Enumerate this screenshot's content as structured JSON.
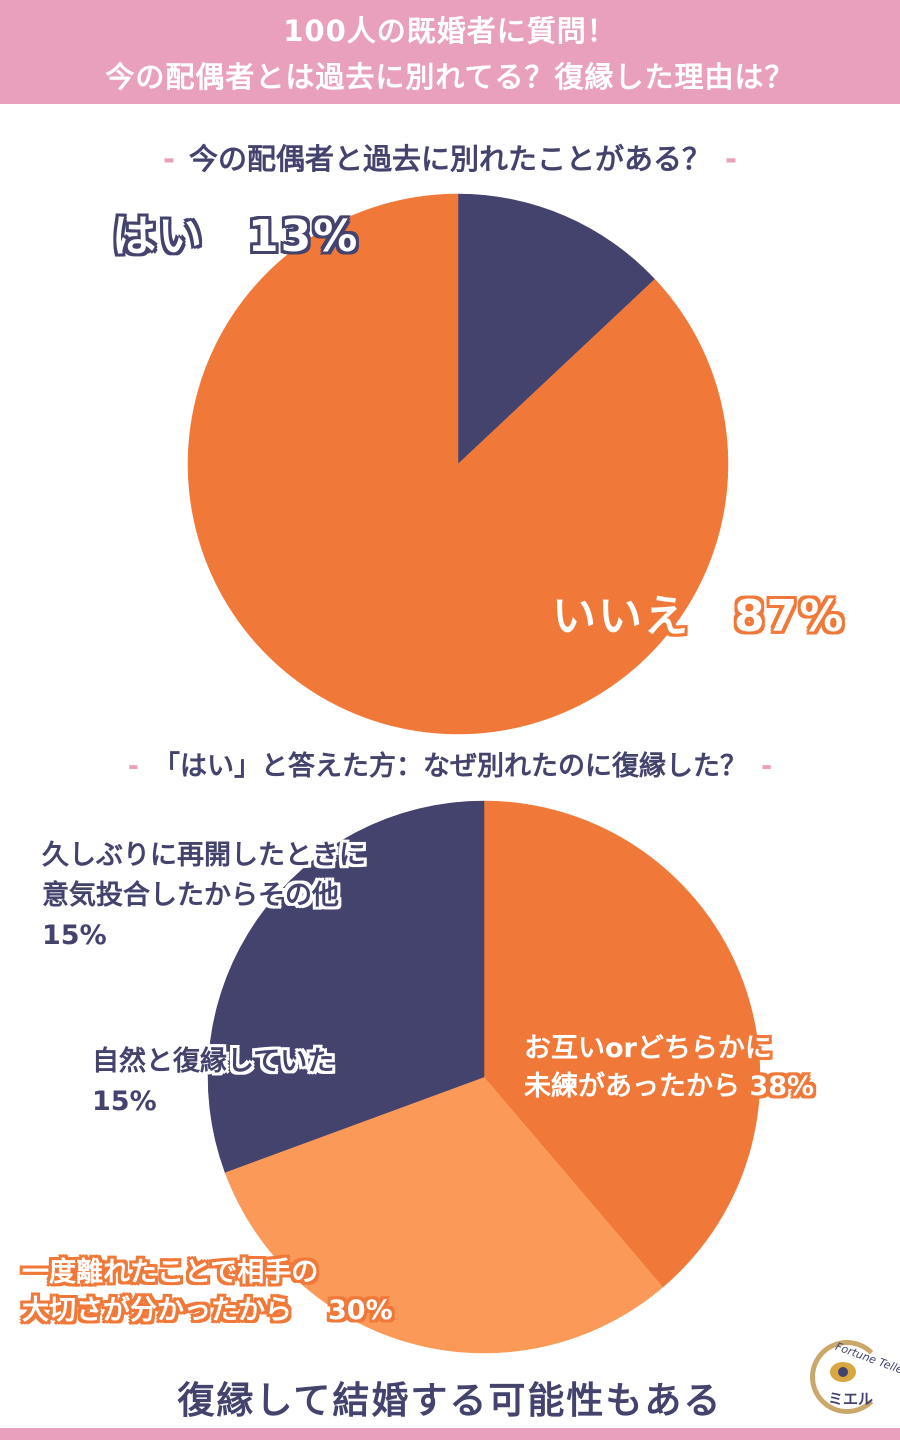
{
  "header": {
    "line1": "100人の既婚者に質問！",
    "line2": "今の配偶者とは過去に別れてる？復縁した理由は？"
  },
  "colors": {
    "navy": "#43436e",
    "orange": "#f07838",
    "light_orange": "#fb9a58",
    "pink": "#e9a0bd"
  },
  "chart_data": [
    {
      "type": "pie",
      "title": "今の配偶者と過去に別れたことがある？",
      "slices": [
        {
          "label": "はい",
          "value": 13,
          "display": "13%",
          "color": "#43436e"
        },
        {
          "label": "いいえ",
          "value": 87,
          "display": "87%",
          "color": "#f07838"
        }
      ]
    },
    {
      "type": "pie",
      "title": "「はい」と答えた方：なぜ別れたのに復縁した？",
      "slices": [
        {
          "label": "お互いorどちらかに未練があったから",
          "line1": "お互いorどちらかに",
          "line2": "未練があったから",
          "value": 38,
          "display": "38%",
          "color": "#f07838"
        },
        {
          "label": "一度離れたことで相手の大切さが分かったから",
          "line1": "一度離れたことで相手の",
          "line2": "大切さが分かったから",
          "value": 30,
          "display": "30%",
          "color": "#fb9a58"
        },
        {
          "label": "自然と復縁していた",
          "line1": "自然と復縁していた",
          "value": 15,
          "display": "15%",
          "color": "#43436e"
        },
        {
          "label": "久しぶりに再開したときに意気投合したからその他",
          "line1": "久しぶりに再開したときに",
          "line2": "意気投合したからその他",
          "value": 15,
          "display": "15%",
          "color": "#43436e"
        }
      ]
    }
  ],
  "q1": {
    "dash": "-",
    "title": "今の配偶者と過去に別れたことがある？"
  },
  "q2": {
    "dash": "-",
    "title": "「はい」と答えた方：なぜ別れたのに復縁した？"
  },
  "footer": {
    "text": "復縁して結婚する可能性もある"
  },
  "logo": {
    "brand": "Fortune Teller",
    "name": "ミエル",
    "icon": "eye-icon"
  }
}
